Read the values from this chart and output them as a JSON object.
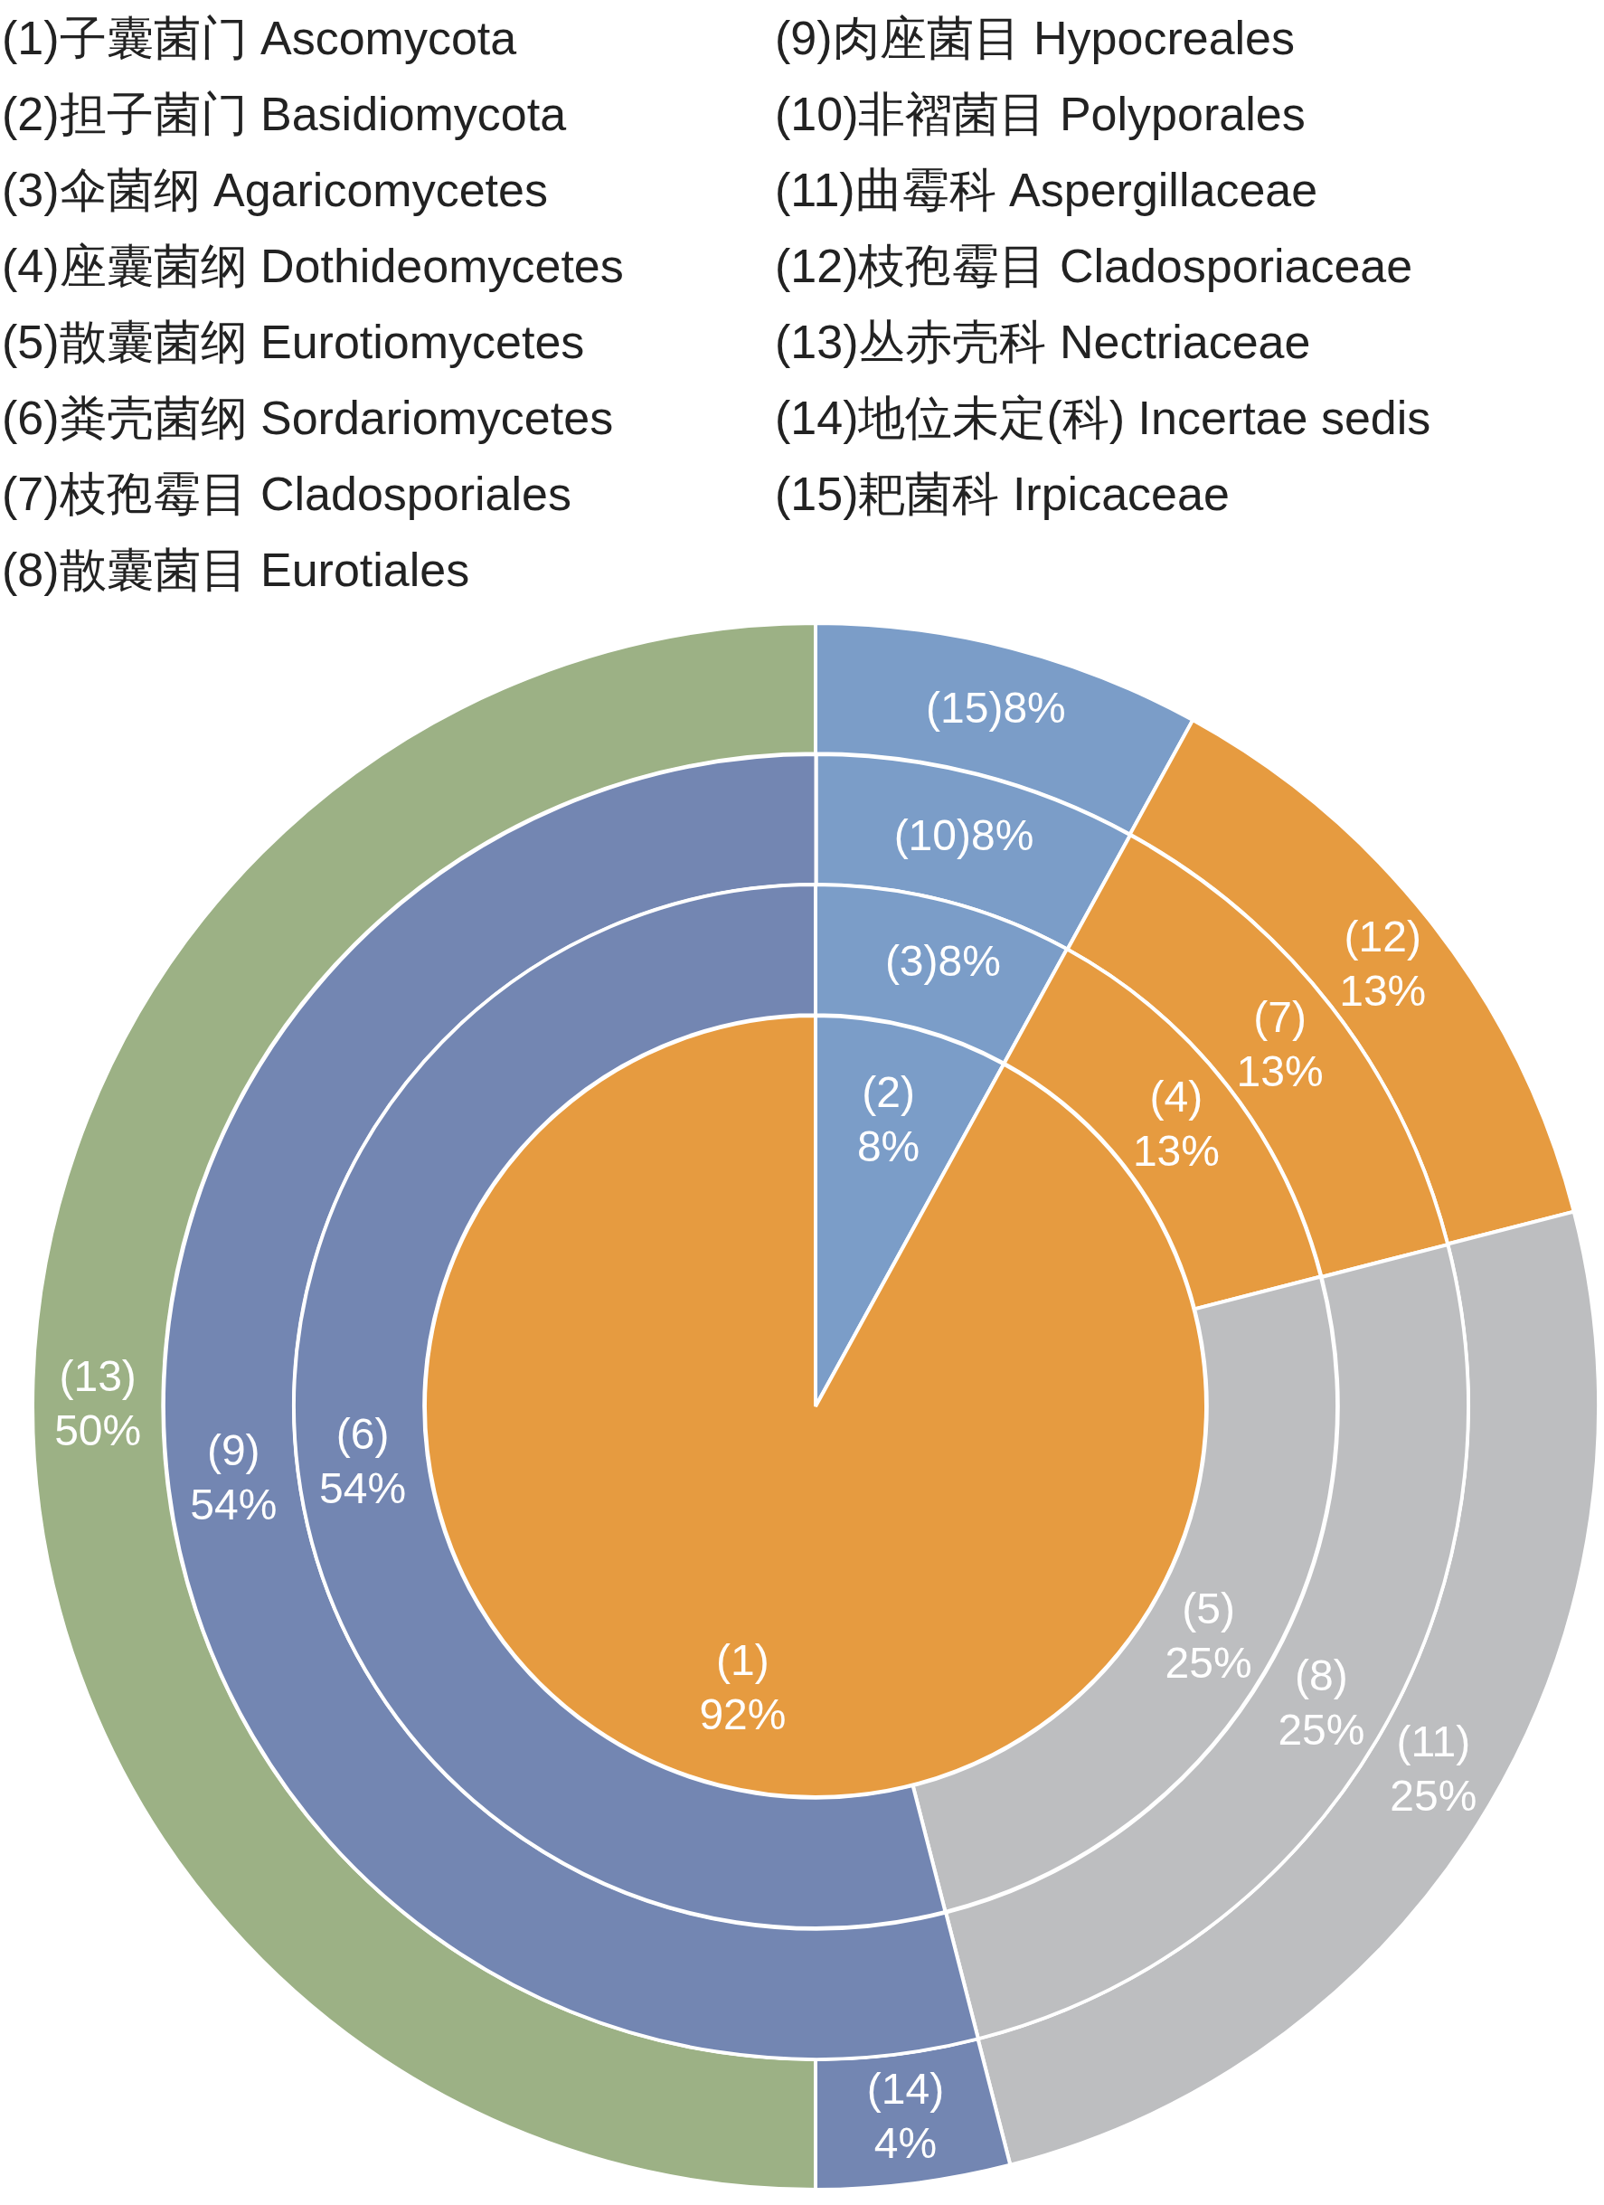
{
  "chart_data": [
    {
      "type": "donut",
      "categories": [
        "(15)",
        "(12)",
        "(11)",
        "(14)",
        "(13)"
      ],
      "values": [
        8,
        13,
        25,
        4,
        50
      ],
      "value_labels": [
        "8%",
        "13%",
        "25%",
        "4%",
        "50%"
      ],
      "colors": [
        "#7b9dc8",
        "#e69b40",
        "#bdbec0",
        "#7386b2",
        "#9cb185"
      ],
      "annotations": [
        "(1)子囊菌门 Ascomycota",
        "(2)担子菌门 Basidiomycota",
        "(3)伞菌纲 Agaricomycetes",
        "(4)座囊菌纲 Dothideomycetes",
        "(5)散囊菌纲 Eurotiomycetes",
        "(6)粪壳菌纲 Sordariomycetes",
        "(7)枝孢霉目 Cladosporiales",
        "(8)散囊菌目 Eurotiales",
        "(9)肉座菌目 Hypocreales",
        "(10)非褶菌目 Polyporales",
        "(11)曲霉科 Aspergillaceae",
        "(12)枝孢霉目 Cladosporiaceae",
        "(13)丛赤壳科 Nectriaceae",
        "(14)地位未定(科) Incertae sedis",
        "(15)耙菌科 Irpicaceae"
      ]
    },
    {
      "type": "donut",
      "categories": [
        "(10)",
        "(7)",
        "(8)",
        "(9)"
      ],
      "values": [
        8,
        13,
        25,
        54
      ],
      "value_labels": [
        "8%",
        "13%",
        "25%",
        "54%"
      ],
      "colors": [
        "#7b9dc8",
        "#e69b40",
        "#bdbec0",
        "#7386b2"
      ]
    },
    {
      "type": "donut",
      "categories": [
        "(3)",
        "(4)",
        "(5)",
        "(6)"
      ],
      "values": [
        8,
        13,
        25,
        54
      ],
      "value_labels": [
        "8%",
        "13%",
        "25%",
        "54%"
      ],
      "colors": [
        "#7b9dc8",
        "#e69b40",
        "#bdbec0",
        "#7386b2"
      ]
    },
    {
      "type": "pie",
      "categories": [
        "(2)",
        "(1)"
      ],
      "values": [
        8,
        92
      ],
      "value_labels": [
        "8%",
        "92%"
      ],
      "colors": [
        "#7b9dc8",
        "#e69b40"
      ]
    }
  ]
}
